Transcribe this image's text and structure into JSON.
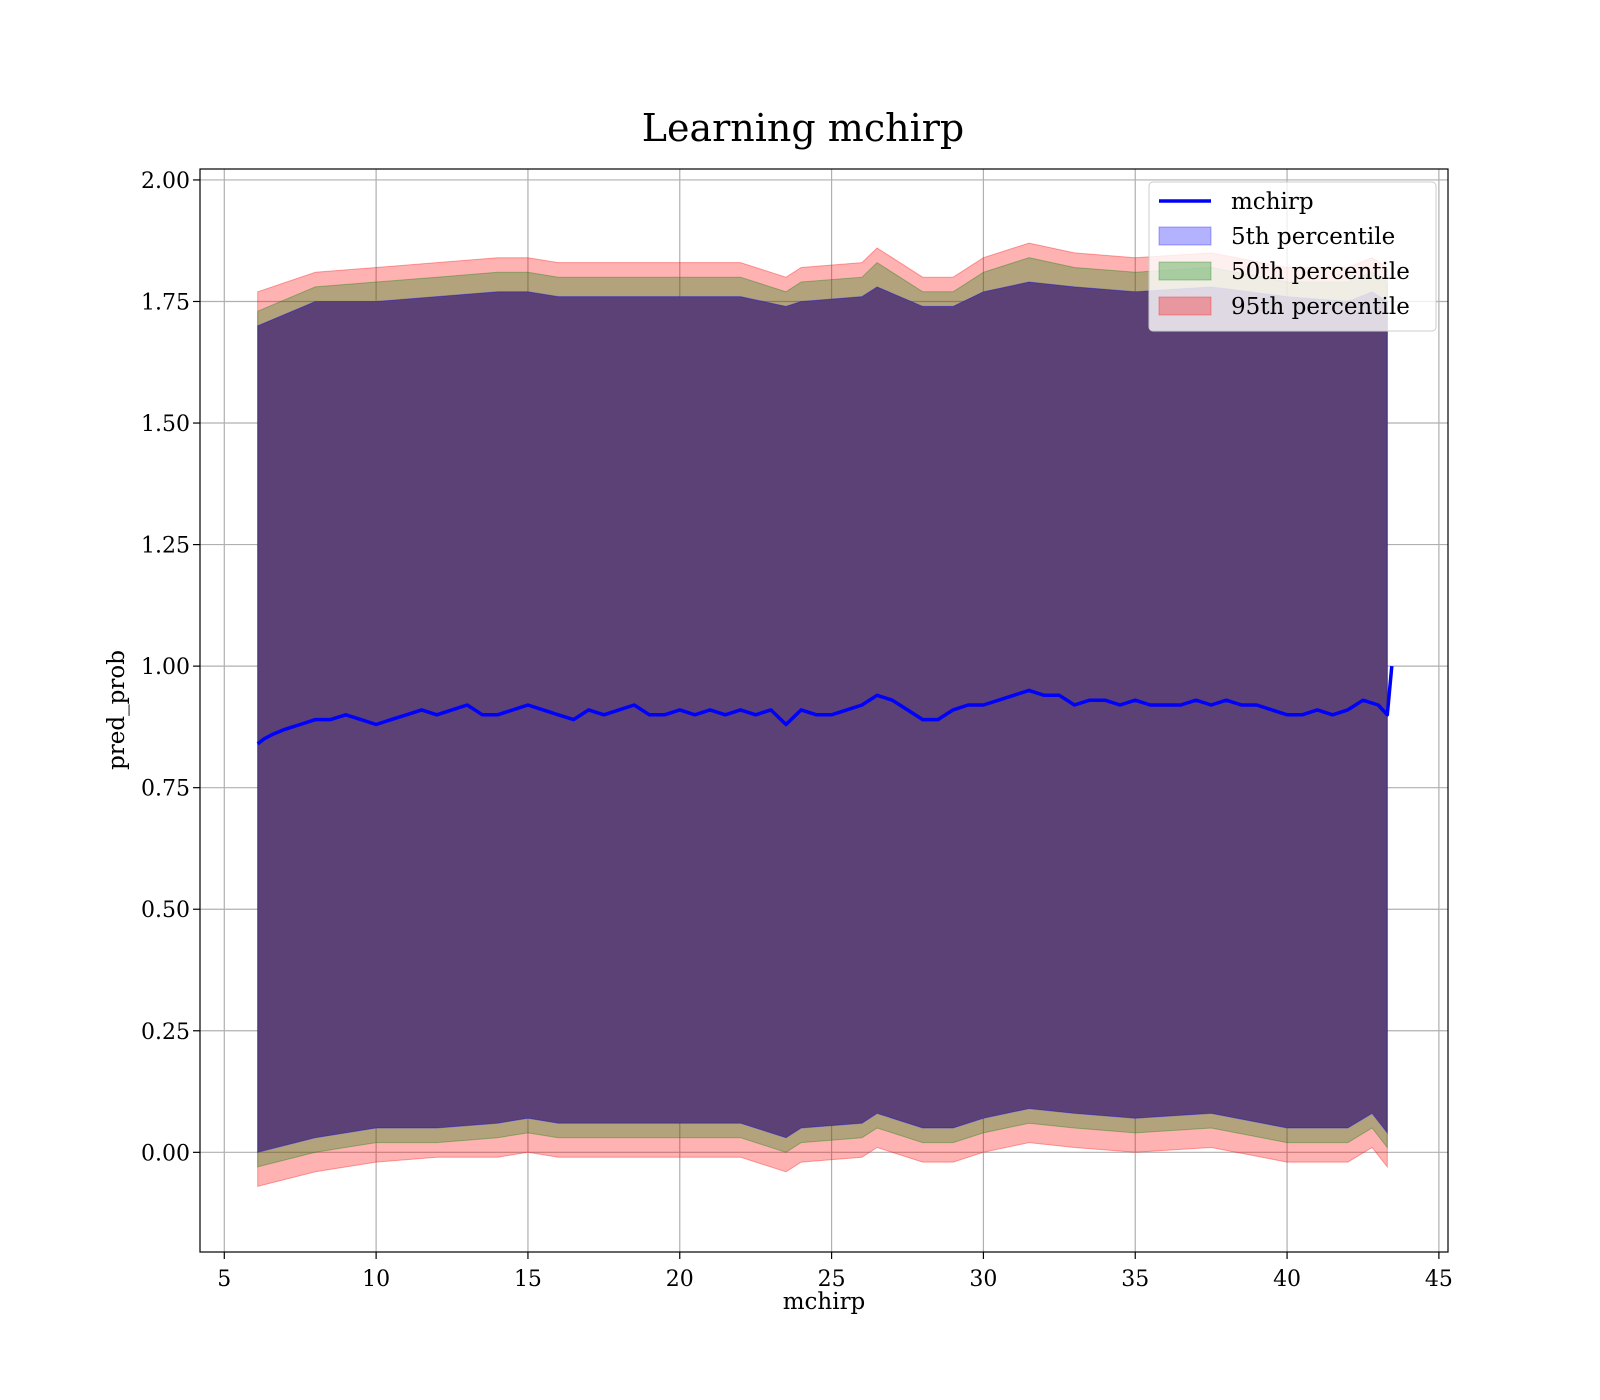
{
  "chart_data": {
    "type": "line",
    "title": "Learning mchirp",
    "xlabel": "mchirp",
    "ylabel": "pred_prob",
    "xlim": [
      4.2,
      45.3
    ],
    "ylim": [
      -0.205,
      2.0225
    ],
    "x_ticks": [
      "5",
      "10",
      "15",
      "20",
      "25",
      "30",
      "35",
      "40",
      "45"
    ],
    "y_ticks": [
      "0.00",
      "0.25",
      "0.50",
      "0.75",
      "1.00",
      "1.25",
      "1.50",
      "1.75",
      "2.00"
    ],
    "grid": true,
    "legend_position": "upper right",
    "colors": {
      "line": "#0000ff",
      "band_5th": "#0000ff",
      "band_50th": "#008000",
      "band_95th": "#ff0000",
      "overlap_fill": "#a0717b"
    },
    "line_series": {
      "name": "mchirp",
      "x": [
        6.1,
        6.3,
        6.6,
        7.0,
        7.5,
        8.0,
        8.5,
        9.0,
        9.5,
        10.0,
        10.5,
        11.0,
        11.5,
        12.0,
        12.5,
        13.0,
        13.5,
        14.0,
        14.5,
        15.0,
        15.5,
        16.0,
        16.5,
        17.0,
        17.5,
        18.0,
        18.5,
        19.0,
        19.5,
        20.0,
        20.5,
        21.0,
        21.5,
        22.0,
        22.5,
        23.0,
        23.5,
        24.0,
        24.5,
        25.0,
        25.5,
        26.0,
        26.5,
        27.0,
        27.5,
        28.0,
        28.5,
        29.0,
        29.5,
        30.0,
        30.5,
        31.0,
        31.5,
        32.0,
        32.5,
        33.0,
        33.5,
        34.0,
        34.5,
        35.0,
        35.5,
        36.0,
        36.5,
        37.0,
        37.5,
        38.0,
        38.5,
        39.0,
        39.5,
        40.0,
        40.5,
        41.0,
        41.5,
        42.0,
        42.5,
        43.0,
        43.3,
        43.45
      ],
      "y": [
        0.84,
        0.85,
        0.86,
        0.87,
        0.88,
        0.89,
        0.89,
        0.9,
        0.89,
        0.88,
        0.89,
        0.9,
        0.91,
        0.9,
        0.91,
        0.92,
        0.9,
        0.9,
        0.91,
        0.92,
        0.91,
        0.9,
        0.89,
        0.91,
        0.9,
        0.91,
        0.92,
        0.9,
        0.9,
        0.91,
        0.9,
        0.91,
        0.9,
        0.91,
        0.9,
        0.91,
        0.88,
        0.91,
        0.9,
        0.9,
        0.91,
        0.92,
        0.94,
        0.93,
        0.91,
        0.89,
        0.89,
        0.91,
        0.92,
        0.92,
        0.93,
        0.94,
        0.95,
        0.94,
        0.94,
        0.92,
        0.93,
        0.93,
        0.92,
        0.93,
        0.92,
        0.92,
        0.92,
        0.93,
        0.92,
        0.93,
        0.92,
        0.92,
        0.91,
        0.9,
        0.9,
        0.91,
        0.9,
        0.91,
        0.93,
        0.92,
        0.9,
        1.0
      ]
    },
    "bands": [
      {
        "name": "5th percentile",
        "x": [
          6.1,
          8,
          10,
          12,
          14,
          15,
          16,
          18,
          20,
          22,
          23.5,
          24,
          26,
          26.5,
          28,
          29,
          30,
          31.5,
          33,
          35,
          37.5,
          40,
          42,
          42.8,
          43.3
        ],
        "upper": [
          1.7,
          1.75,
          1.75,
          1.76,
          1.77,
          1.77,
          1.76,
          1.76,
          1.76,
          1.76,
          1.74,
          1.75,
          1.76,
          1.78,
          1.74,
          1.74,
          1.77,
          1.79,
          1.78,
          1.77,
          1.78,
          1.76,
          1.75,
          1.77,
          1.75
        ],
        "lower": [
          0.0,
          0.03,
          0.05,
          0.05,
          0.06,
          0.07,
          0.06,
          0.06,
          0.06,
          0.06,
          0.03,
          0.05,
          0.06,
          0.08,
          0.05,
          0.05,
          0.07,
          0.09,
          0.08,
          0.07,
          0.08,
          0.05,
          0.05,
          0.08,
          0.04
        ]
      },
      {
        "name": "50th percentile",
        "x": [
          6.1,
          8,
          10,
          12,
          14,
          15,
          16,
          18,
          20,
          22,
          23.5,
          24,
          26,
          26.5,
          28,
          29,
          30,
          31.5,
          33,
          35,
          37.5,
          40,
          42,
          42.8,
          43.3
        ],
        "upper": [
          1.73,
          1.78,
          1.79,
          1.8,
          1.81,
          1.81,
          1.8,
          1.8,
          1.8,
          1.8,
          1.77,
          1.79,
          1.8,
          1.83,
          1.77,
          1.77,
          1.81,
          1.84,
          1.82,
          1.81,
          1.82,
          1.79,
          1.79,
          1.81,
          1.79
        ],
        "lower": [
          -0.03,
          0.0,
          0.02,
          0.02,
          0.03,
          0.04,
          0.03,
          0.03,
          0.03,
          0.03,
          0.0,
          0.02,
          0.03,
          0.05,
          0.02,
          0.02,
          0.04,
          0.06,
          0.05,
          0.04,
          0.05,
          0.02,
          0.02,
          0.05,
          0.01
        ]
      },
      {
        "name": "95th percentile",
        "x": [
          6.1,
          8,
          10,
          12,
          14,
          15,
          16,
          18,
          20,
          22,
          23.5,
          24,
          26,
          26.5,
          28,
          29,
          30,
          31.5,
          33,
          35,
          37.5,
          40,
          42,
          42.8,
          43.3
        ],
        "upper": [
          1.77,
          1.81,
          1.82,
          1.83,
          1.84,
          1.84,
          1.83,
          1.83,
          1.83,
          1.83,
          1.8,
          1.82,
          1.83,
          1.86,
          1.8,
          1.8,
          1.84,
          1.87,
          1.85,
          1.84,
          1.85,
          1.82,
          1.82,
          1.84,
          1.82
        ],
        "lower": [
          -0.07,
          -0.04,
          -0.02,
          -0.01,
          -0.01,
          0.0,
          -0.01,
          -0.01,
          -0.01,
          -0.01,
          -0.04,
          -0.02,
          -0.01,
          0.01,
          -0.02,
          -0.02,
          0.0,
          0.02,
          0.01,
          0.0,
          0.01,
          -0.02,
          -0.02,
          0.01,
          -0.03
        ]
      }
    ],
    "legend": [
      "mchirp",
      "5th percentile",
      "50th percentile",
      "95th percentile"
    ]
  }
}
